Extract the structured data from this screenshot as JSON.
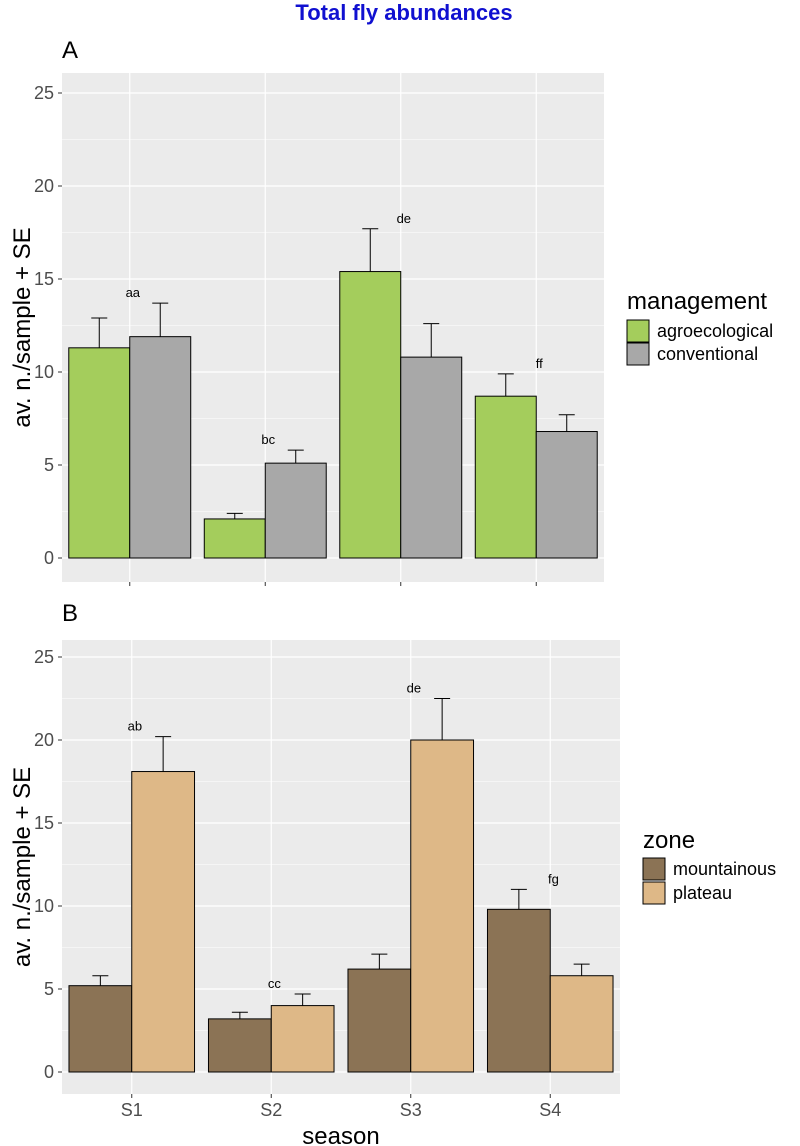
{
  "title": "Total fly abundances",
  "colors": {
    "agroecological": "#a4cd5c",
    "conventional": "#a8a8a8",
    "mountainous": "#8b7355",
    "plateau": "#deb887",
    "title": "#1010d0"
  },
  "chart_data": [
    {
      "type": "bar",
      "tag": "A",
      "title": "Total fly abundances",
      "xlabel": "",
      "ylabel": "av. n./sample + SE",
      "ylim": [
        0,
        25
      ],
      "yticks": [
        0,
        5,
        10,
        15,
        20,
        25
      ],
      "categories": [
        "S1",
        "S2",
        "S3",
        "S4"
      ],
      "show_x_tick_labels": false,
      "legend_title": "management",
      "series": [
        {
          "name": "agroecological",
          "color_key": "agroecological",
          "values": [
            11.3,
            2.1,
            15.4,
            8.7
          ],
          "se": [
            1.6,
            0.3,
            2.3,
            1.2
          ]
        },
        {
          "name": "conventional",
          "color_key": "conventional",
          "values": [
            11.9,
            5.1,
            10.8,
            6.8
          ],
          "se": [
            1.8,
            0.7,
            1.8,
            0.9
          ]
        }
      ],
      "annotations": [
        "aa",
        "bc",
        "de",
        "ff"
      ]
    },
    {
      "type": "bar",
      "tag": "B",
      "xlabel": "season",
      "ylabel": "av. n./sample + SE",
      "ylim": [
        0,
        25
      ],
      "yticks": [
        0,
        5,
        10,
        15,
        20,
        25
      ],
      "categories": [
        "S1",
        "S2",
        "S3",
        "S4"
      ],
      "show_x_tick_labels": true,
      "legend_title": "zone",
      "series": [
        {
          "name": "mountainous",
          "color_key": "mountainous",
          "values": [
            5.2,
            3.2,
            6.2,
            9.8
          ],
          "se": [
            0.6,
            0.4,
            0.9,
            1.2
          ]
        },
        {
          "name": "plateau",
          "color_key": "plateau",
          "values": [
            18.1,
            4.0,
            20.0,
            5.8
          ],
          "se": [
            2.1,
            0.7,
            2.5,
            0.7
          ]
        }
      ],
      "annotations": [
        "ab",
        "cc",
        "de",
        "fg"
      ]
    }
  ]
}
